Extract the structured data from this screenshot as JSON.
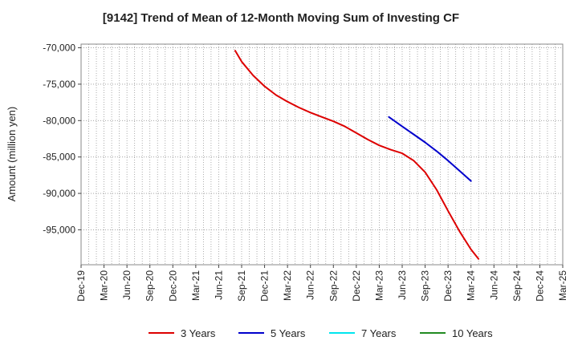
{
  "chart_data": {
    "type": "line",
    "title": "[9142]  Trend of Mean of 12-Month Moving Sum of Investing CF",
    "xlabel": "",
    "ylabel": "Amount (million yen)",
    "ylim": [
      -99800,
      -69500
    ],
    "yticks": [
      -70000,
      -75000,
      -80000,
      -85000,
      -90000,
      -95000
    ],
    "ytick_labels": [
      "-70,000",
      "-75,000",
      "-80,000",
      "-85,000",
      "-90,000",
      "-95,000"
    ],
    "categories": [
      "Dec-19",
      "Mar-20",
      "Jun-20",
      "Sep-20",
      "Dec-20",
      "Mar-21",
      "Jun-21",
      "Sep-21",
      "Dec-21",
      "Mar-22",
      "Jun-22",
      "Sep-22",
      "Dec-22",
      "Mar-23",
      "Jun-23",
      "Sep-23",
      "Dec-23",
      "Mar-24",
      "Jun-24",
      "Sep-24",
      "Dec-24",
      "Mar-25"
    ],
    "grid": true,
    "legend_position": "bottom",
    "series": [
      {
        "name": "3 Years",
        "color": "#dd0000",
        "points": [
          [
            6.72,
            -70400
          ],
          [
            7.0,
            -71900
          ],
          [
            7.5,
            -73800
          ],
          [
            8.0,
            -75300
          ],
          [
            8.5,
            -76500
          ],
          [
            9.0,
            -77400
          ],
          [
            9.5,
            -78200
          ],
          [
            10.0,
            -78900
          ],
          [
            10.5,
            -79500
          ],
          [
            11.0,
            -80100
          ],
          [
            11.5,
            -80800
          ],
          [
            12.0,
            -81700
          ],
          [
            12.5,
            -82600
          ],
          [
            13.0,
            -83400
          ],
          [
            13.5,
            -84000
          ],
          [
            14.0,
            -84500
          ],
          [
            14.5,
            -85500
          ],
          [
            15.0,
            -87100
          ],
          [
            15.5,
            -89500
          ],
          [
            16.0,
            -92400
          ],
          [
            16.5,
            -95200
          ],
          [
            17.0,
            -97700
          ],
          [
            17.33,
            -99000
          ]
        ]
      },
      {
        "name": "5 Years",
        "color": "#0000cc",
        "points": [
          [
            13.42,
            -79500
          ],
          [
            14.0,
            -80800
          ],
          [
            14.5,
            -81900
          ],
          [
            15.0,
            -83000
          ],
          [
            15.5,
            -84200
          ],
          [
            16.0,
            -85500
          ],
          [
            16.5,
            -86900
          ],
          [
            17.0,
            -88300
          ]
        ]
      },
      {
        "name": "7 Years",
        "color": "#00e5ee",
        "points": []
      },
      {
        "name": "10 Years",
        "color": "#228b22",
        "points": []
      }
    ]
  }
}
